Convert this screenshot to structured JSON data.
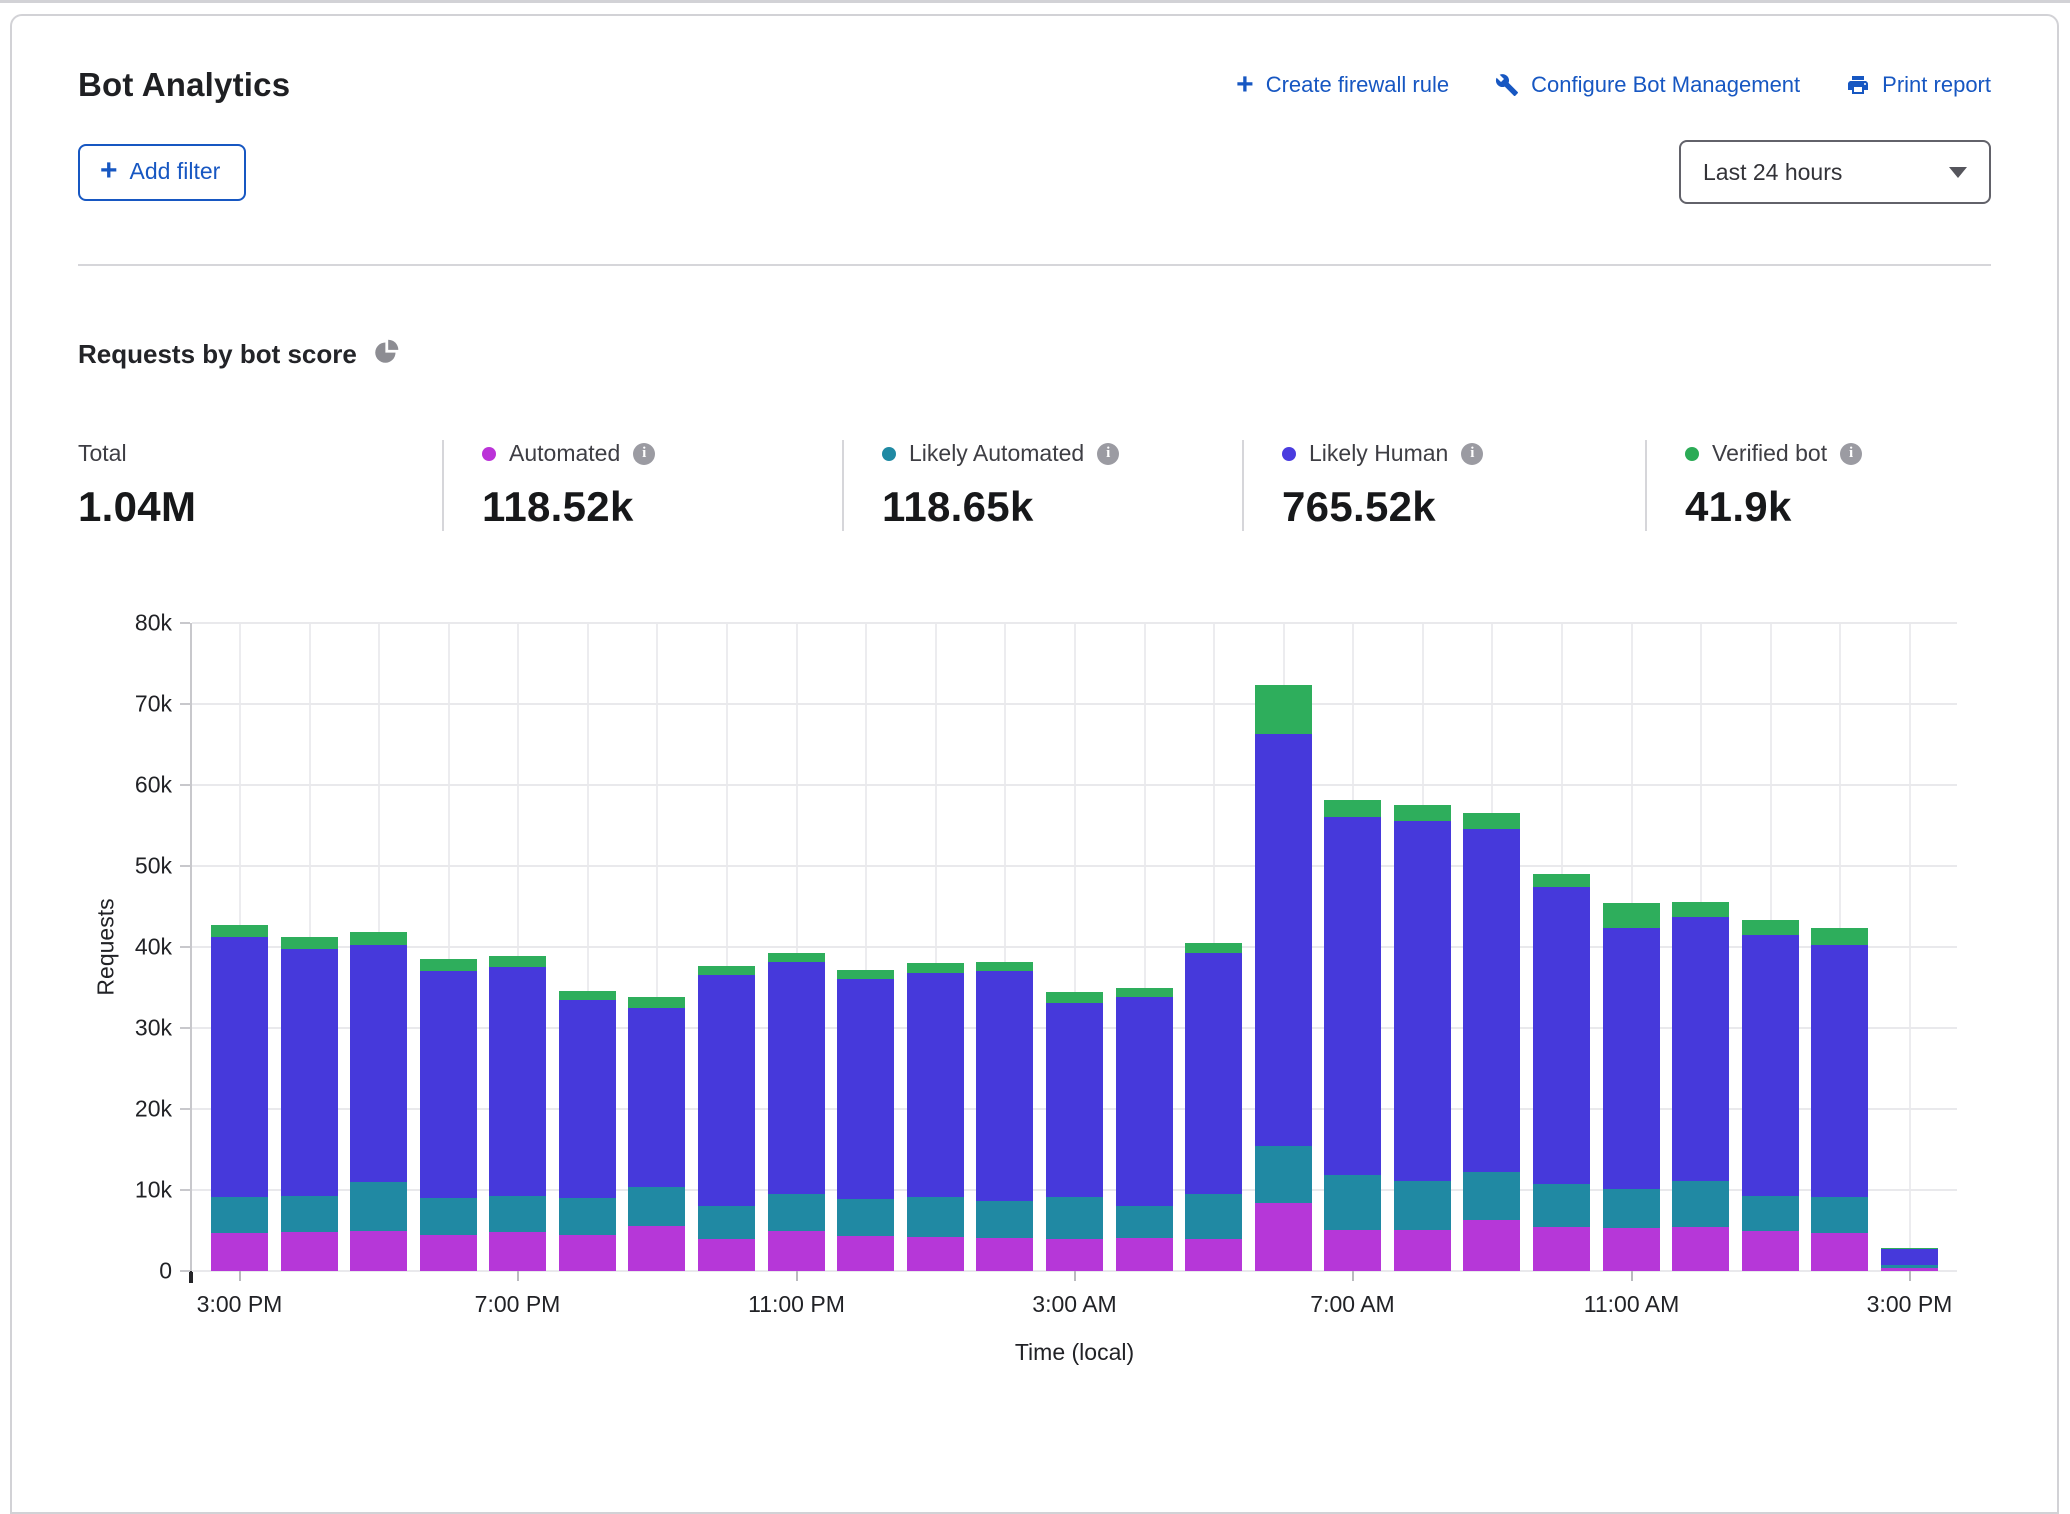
{
  "header": {
    "title": "Bot Analytics",
    "actions": [
      {
        "label": "Create firewall rule",
        "icon": "plus-icon"
      },
      {
        "label": "Configure Bot Management",
        "icon": "wrench-icon"
      },
      {
        "label": "Print report",
        "icon": "printer-icon"
      }
    ],
    "link_color": "#1757c2"
  },
  "filters": {
    "add_filter_label": "Add filter",
    "time_range_value": "Last 24 hours"
  },
  "section": {
    "title": "Requests by bot score",
    "icon": "pie-chart-icon"
  },
  "stats": {
    "total": {
      "label": "Total",
      "value": "1.04M"
    },
    "items": [
      {
        "key": "automated",
        "label": "Automated",
        "value": "118.52k",
        "color": "#bb33d8"
      },
      {
        "key": "likely_automated",
        "label": "Likely Automated",
        "value": "118.65k",
        "color": "#1f89a3"
      },
      {
        "key": "likely_human",
        "label": "Likely Human",
        "value": "765.52k",
        "color": "#4a3cdf"
      },
      {
        "key": "verified_bot",
        "label": "Verified bot",
        "value": "41.9k",
        "color": "#2bab56"
      }
    ]
  },
  "chart_data": {
    "type": "bar",
    "stacked": true,
    "title": "Requests by bot score",
    "ylabel": "Requests",
    "xlabel": "Time (local)",
    "ylim": [
      0,
      80000
    ],
    "grid": true,
    "yticks": [
      {
        "value": 0,
        "label": "0"
      },
      {
        "value": 10000,
        "label": "10k"
      },
      {
        "value": 20000,
        "label": "20k"
      },
      {
        "value": 30000,
        "label": "30k"
      },
      {
        "value": 40000,
        "label": "40k"
      },
      {
        "value": 50000,
        "label": "50k"
      },
      {
        "value": 60000,
        "label": "60k"
      },
      {
        "value": 70000,
        "label": "70k"
      },
      {
        "value": 80000,
        "label": "80k"
      }
    ],
    "x": [
      "3:00 PM",
      "4:00 PM",
      "5:00 PM",
      "6:00 PM",
      "7:00 PM",
      "8:00 PM",
      "9:00 PM",
      "10:00 PM",
      "11:00 PM",
      "12:00 AM",
      "1:00 AM",
      "2:00 AM",
      "3:00 AM",
      "4:00 AM",
      "5:00 AM",
      "6:00 AM",
      "7:00 AM",
      "8:00 AM",
      "9:00 AM",
      "10:00 AM",
      "11:00 AM",
      "12:00 PM",
      "1:00 PM",
      "2:00 PM",
      "3:00 PM"
    ],
    "xtick_indices": [
      0,
      4,
      8,
      12,
      16,
      20,
      24
    ],
    "series": [
      {
        "key": "automated",
        "name": "Automated",
        "color": "#b637d8",
        "values": [
          4700,
          4800,
          5000,
          4500,
          4800,
          4400,
          5500,
          3900,
          4900,
          4300,
          4200,
          4100,
          4000,
          4100,
          4000,
          8400,
          5100,
          5100,
          6300,
          5400,
          5300,
          5400,
          4900,
          4700,
          400
        ]
      },
      {
        "key": "likely_automated",
        "name": "Likely Automated",
        "color": "#2089a3",
        "values": [
          4400,
          4500,
          6000,
          4500,
          4500,
          4600,
          4900,
          4100,
          4600,
          4600,
          4900,
          4600,
          5100,
          3900,
          5500,
          7100,
          6800,
          6000,
          5900,
          5300,
          4800,
          5700,
          4400,
          4400,
          400
        ]
      },
      {
        "key": "likely_human",
        "name": "Likely Human",
        "color": "#4639db",
        "values": [
          32200,
          30500,
          29300,
          28000,
          28200,
          24500,
          22100,
          28500,
          28600,
          27100,
          27700,
          28300,
          24000,
          25800,
          29800,
          50800,
          44200,
          44500,
          42400,
          36700,
          32300,
          32600,
          32200,
          31100,
          1900
        ]
      },
      {
        "key": "verified_bot",
        "name": "Verified bot",
        "color": "#2eae5c",
        "values": [
          1400,
          1400,
          1500,
          1500,
          1400,
          1100,
          1300,
          1200,
          1100,
          1200,
          1200,
          1200,
          1300,
          1100,
          1200,
          6000,
          2000,
          1900,
          2000,
          1600,
          3000,
          1800,
          1900,
          2100,
          100
        ]
      }
    ]
  }
}
